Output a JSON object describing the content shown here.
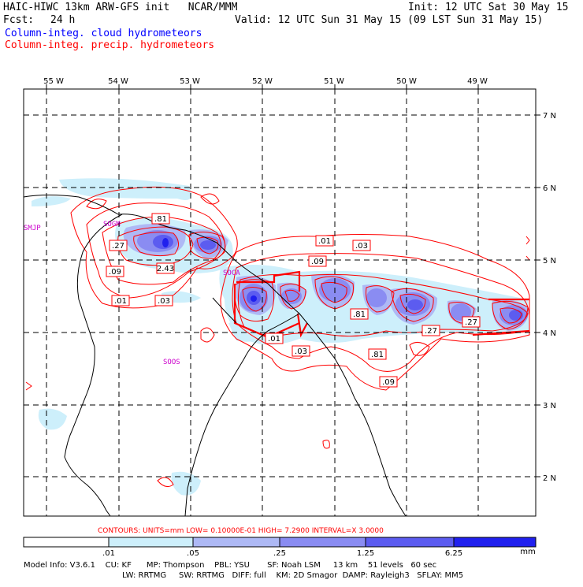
{
  "header": {
    "title": "HAIC-HIWC 13km ARW-GFS init   NCAR/MMM",
    "init": "Init: 12 UTC Sat 30 May 15",
    "fcst_label": "Fcst:",
    "fcst_value": "24 h",
    "valid": "Valid: 12 UTC Sun 31 May 15 (09 LST Sun 31 May 15)",
    "field1": "Column-integ. cloud hydrometeors",
    "field2": "Column-integ. precip. hydrometeors"
  },
  "colors": {
    "field1": "#0000ff",
    "field2": "#ff0000",
    "station": "#cc00cc"
  },
  "map": {
    "lon_labels": [
      "55 W",
      "54 W",
      "53 W",
      "52 W",
      "51 W",
      "50 W",
      "49 W"
    ],
    "lat_labels": [
      "7 N",
      "6 N",
      "5 N",
      "4 N",
      "3 N",
      "2 N"
    ],
    "stations": [
      "SMJP",
      "SOGM",
      "SOCA",
      "SOOS"
    ],
    "contour_labels": [
      ".81",
      ".27",
      "2.43",
      ".09",
      ".01",
      ".03",
      ".01",
      ".09",
      ".03",
      ".81",
      ".01",
      ".03",
      ".81",
      ".09",
      ".27",
      ".27"
    ]
  },
  "footer": {
    "contours": "CONTOURS:  UNITS=mm  LOW= 0.10000E-01  HIGH=  7.2900     INTERVAL=X  3.0000",
    "scale_ticks": [
      ".01",
      ".05",
      ".25",
      "1.25",
      "6.25"
    ],
    "scale_unit": "mm",
    "scale_colors": [
      "#ffffff",
      "#cdeffb",
      "#aeb9f5",
      "#8a8cf2",
      "#5c5cf0",
      "#2020ee"
    ],
    "model_line1": "Model Info: V3.6.1    CU: KF      MP: Thompson    PBL: YSU       SF: Noah LSM     13 km    51 levels   60 sec",
    "model_line2": "LW: RRTMG     SW: RRTMG   DIFF: full    KM: 2D Smagor  DAMP: Rayleigh3   SFLAY: MM5"
  }
}
